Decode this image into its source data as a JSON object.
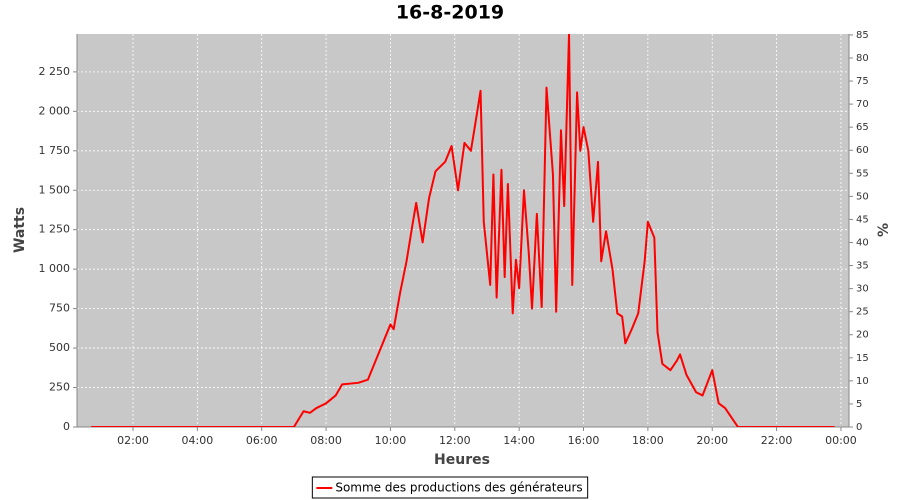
{
  "chart_data": {
    "type": "line",
    "title": "16-8-2019",
    "xlabel": "Heures",
    "ylabel": "Watts",
    "y2label": "%",
    "x": [
      0.7,
      7.0,
      7.3,
      7.5,
      7.7,
      8.0,
      8.3,
      8.5,
      9.0,
      9.3,
      9.5,
      9.8,
      10.0,
      10.1,
      10.3,
      10.5,
      10.7,
      10.8,
      11.0,
      11.2,
      11.4,
      11.7,
      11.9,
      12.1,
      12.3,
      12.5,
      12.7,
      12.8,
      12.9,
      13.1,
      13.2,
      13.3,
      13.45,
      13.55,
      13.65,
      13.8,
      13.9,
      14.0,
      14.15,
      14.3,
      14.4,
      14.55,
      14.7,
      14.85,
      15.05,
      15.15,
      15.3,
      15.4,
      15.55,
      15.65,
      15.8,
      15.9,
      16.0,
      16.15,
      16.3,
      16.45,
      16.55,
      16.7,
      16.9,
      17.05,
      17.2,
      17.3,
      17.5,
      17.7,
      17.9,
      18.0,
      18.2,
      18.3,
      18.45,
      18.7,
      18.9,
      19.0,
      19.2,
      19.5,
      19.7,
      19.85,
      20.0,
      20.2,
      20.4,
      20.6,
      20.8,
      23.8
    ],
    "series": [
      {
        "name": "Somme des productions des  générateurs",
        "color": "#ff0000",
        "values": [
          0,
          0,
          100,
          90,
          120,
          150,
          200,
          270,
          280,
          300,
          400,
          550,
          650,
          620,
          850,
          1050,
          1300,
          1420,
          1170,
          1450,
          1620,
          1680,
          1780,
          1500,
          1800,
          1750,
          2000,
          2130,
          1300,
          900,
          1600,
          820,
          1630,
          950,
          1540,
          720,
          1060,
          880,
          1500,
          1100,
          750,
          1350,
          760,
          2150,
          1600,
          730,
          1880,
          1400,
          2490,
          900,
          2120,
          1750,
          1900,
          1750,
          1300,
          1680,
          1050,
          1240,
          1000,
          720,
          700,
          530,
          620,
          720,
          1050,
          1300,
          1200,
          600,
          400,
          360,
          420,
          460,
          330,
          220,
          200,
          280,
          360,
          150,
          120,
          60,
          0,
          0
        ]
      }
    ],
    "xlim": [
      0.26,
      24.25
    ],
    "xticks": [
      {
        "value": 2,
        "label": "02:00"
      },
      {
        "value": 4,
        "label": "04:00"
      },
      {
        "value": 6,
        "label": "06:00"
      },
      {
        "value": 8,
        "label": "08:00"
      },
      {
        "value": 10,
        "label": "10:00"
      },
      {
        "value": 12,
        "label": "12:00"
      },
      {
        "value": 14,
        "label": "14:00"
      },
      {
        "value": 16,
        "label": "16:00"
      },
      {
        "value": 18,
        "label": "18:00"
      },
      {
        "value": 20,
        "label": "20:00"
      },
      {
        "value": 22,
        "label": "22:00"
      },
      {
        "value": 24,
        "label": "00:00"
      }
    ],
    "ylim": [
      0,
      2490
    ],
    "yticks": [
      0,
      250,
      500,
      750,
      {
        "value": 1000,
        "label": "1 000"
      },
      {
        "value": 1250,
        "label": "1 250"
      },
      {
        "value": 1500,
        "label": "1 500"
      },
      {
        "value": 1750,
        "label": "1 750"
      },
      {
        "value": 2000,
        "label": "2 000"
      },
      {
        "value": 2250,
        "label": "2 250"
      }
    ],
    "y2lim": [
      0,
      85.2
    ],
    "y2ticks": [
      0,
      5,
      10,
      15,
      20,
      25,
      30,
      35,
      40,
      45,
      50,
      55,
      60,
      65,
      70,
      75,
      80,
      85
    ],
    "grid": true,
    "legend": "bottom"
  }
}
